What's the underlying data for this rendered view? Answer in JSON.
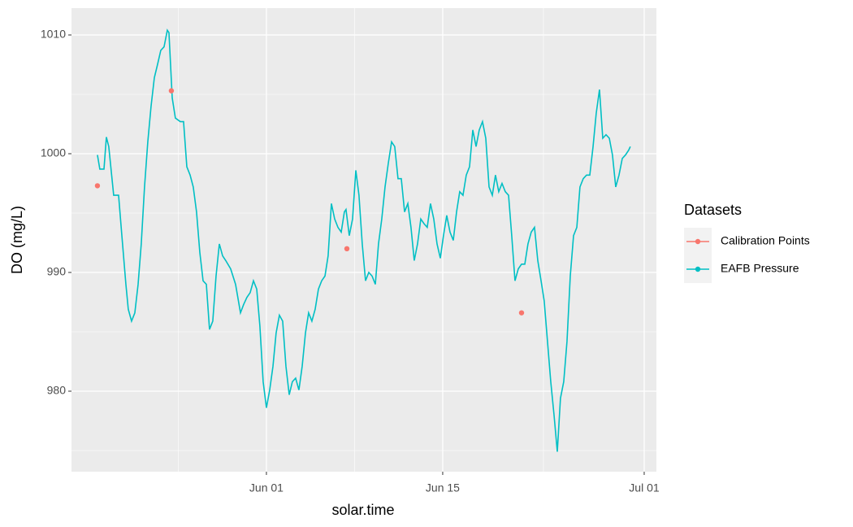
{
  "chart_data": {
    "type": "line",
    "x_label": "solar.time",
    "y_label": "DO (mg/L)",
    "legend_title": "Datasets",
    "legend": "right",
    "grid": true,
    "xlim": [
      -15.48,
      30.97
    ],
    "ylim": [
      973.22,
      1012.26
    ],
    "xticks": [
      {
        "value": 0,
        "label": "Jun 01"
      },
      {
        "value": 14,
        "label": "Jun 15"
      },
      {
        "value": 30,
        "label": "Jul 01"
      }
    ],
    "yticks": [
      980,
      990,
      1000,
      1010
    ],
    "x_minor_grid": [
      -7,
      7,
      22
    ],
    "y_minor_grid": [
      975,
      985,
      995,
      1005
    ],
    "series": [
      {
        "name": "Calibration Points",
        "color": "#f8766d",
        "mode": "points",
        "x": [
          -13.42,
          -7.55,
          6.39,
          20.26
        ],
        "values": [
          997.3,
          1005.3,
          992.0,
          986.6
        ]
      },
      {
        "name": "EAFB Pressure",
        "color": "#00bfc4",
        "mode": "line",
        "x": [
          -13.42,
          -13.23,
          -12.9,
          -12.71,
          -12.52,
          -12.13,
          -11.74,
          -11.48,
          -11.16,
          -10.97,
          -10.71,
          -10.45,
          -10.19,
          -9.94,
          -9.68,
          -9.42,
          -9.16,
          -8.9,
          -8.65,
          -8.39,
          -8.13,
          -7.87,
          -7.74,
          -7.48,
          -7.23,
          -6.84,
          -6.58,
          -6.32,
          -6.06,
          -5.81,
          -5.55,
          -5.29,
          -5.03,
          -4.77,
          -4.52,
          -4.26,
          -4.0,
          -3.74,
          -3.48,
          -3.23,
          -2.84,
          -2.45,
          -2.06,
          -1.81,
          -1.55,
          -1.29,
          -1.03,
          -0.77,
          -0.52,
          -0.26,
          0,
          0.26,
          0.52,
          0.77,
          1.03,
          1.29,
          1.55,
          1.81,
          2.06,
          2.32,
          2.58,
          2.84,
          3.1,
          3.35,
          3.61,
          3.87,
          4.13,
          4.39,
          4.65,
          4.9,
          5.16,
          5.42,
          5.68,
          5.94,
          6.19,
          6.32,
          6.58,
          6.84,
          7.1,
          7.35,
          7.61,
          7.87,
          8.13,
          8.39,
          8.65,
          8.9,
          9.16,
          9.42,
          9.68,
          9.94,
          10.19,
          10.45,
          10.71,
          10.97,
          11.23,
          11.48,
          11.74,
          12.0,
          12.26,
          12.52,
          12.77,
          13.03,
          13.29,
          13.55,
          13.81,
          14.06,
          14.32,
          14.58,
          14.84,
          15.1,
          15.35,
          15.61,
          15.87,
          16.13,
          16.39,
          16.65,
          16.9,
          17.16,
          17.42,
          17.68,
          17.94,
          18.19,
          18.45,
          18.71,
          18.97,
          19.23,
          19.48,
          19.74,
          20.0,
          20.26,
          20.52,
          20.77,
          21.03,
          21.29,
          21.55,
          21.81,
          22.06,
          22.32,
          22.58,
          22.84,
          23.1,
          23.35,
          23.61,
          23.87,
          24.13,
          24.39,
          24.65,
          24.9,
          25.16,
          25.42,
          25.68,
          25.94,
          26.19,
          26.45,
          26.71,
          26.97,
          27.23,
          27.48,
          27.74,
          28.0,
          28.26,
          28.52,
          28.77,
          28.9
        ],
        "values": [
          999.9,
          998.7,
          998.7,
          1001.4,
          1000.6,
          996.5,
          996.5,
          993.1,
          989.0,
          986.9,
          985.9,
          986.6,
          989.0,
          992.4,
          997.2,
          1001.0,
          1004.0,
          1006.4,
          1007.5,
          1008.7,
          1009.0,
          1010.4,
          1010.2,
          1004.7,
          1003.0,
          1002.7,
          1002.7,
          998.9,
          998.2,
          997.2,
          995.1,
          991.7,
          989.3,
          989.0,
          985.2,
          985.9,
          989.7,
          992.4,
          991.4,
          991.0,
          990.3,
          989.0,
          986.6,
          987.3,
          987.9,
          988.3,
          989.3,
          988.6,
          985.5,
          980.8,
          978.6,
          980.1,
          982.1,
          984.9,
          986.4,
          985.9,
          982.1,
          979.7,
          980.8,
          981.1,
          980.1,
          982.1,
          984.9,
          986.6,
          985.9,
          986.9,
          988.6,
          989.3,
          989.7,
          991.4,
          995.8,
          994.5,
          993.8,
          993.4,
          995.1,
          995.3,
          993.1,
          994.5,
          998.6,
          996.5,
          992.4,
          989.3,
          990.0,
          989.7,
          989.0,
          992.4,
          994.5,
          997.2,
          999.2,
          1001.0,
          1000.6,
          997.9,
          997.9,
          995.1,
          995.8,
          993.8,
          991.0,
          992.4,
          994.5,
          994.1,
          993.8,
          995.8,
          994.5,
          992.4,
          991.2,
          993.1,
          994.8,
          993.4,
          992.7,
          995.1,
          996.8,
          996.5,
          998.2,
          998.9,
          1002.0,
          1000.6,
          1002.0,
          1002.7,
          1001.3,
          997.2,
          996.5,
          998.2,
          996.8,
          997.5,
          996.8,
          996.5,
          993.1,
          989.3,
          990.3,
          990.7,
          990.7,
          992.4,
          993.4,
          993.8,
          991.0,
          989.3,
          987.6,
          984.2,
          980.8,
          978.0,
          974.9,
          979.4,
          980.8,
          984.2,
          989.7,
          993.1,
          993.8,
          997.2,
          997.9,
          998.2,
          998.2,
          1000.6,
          1003.4,
          1005.4,
          1001.3,
          1001.6,
          1001.3,
          999.9,
          997.2,
          998.2,
          999.6,
          999.9,
          1000.3,
          1000.6
        ]
      }
    ]
  }
}
